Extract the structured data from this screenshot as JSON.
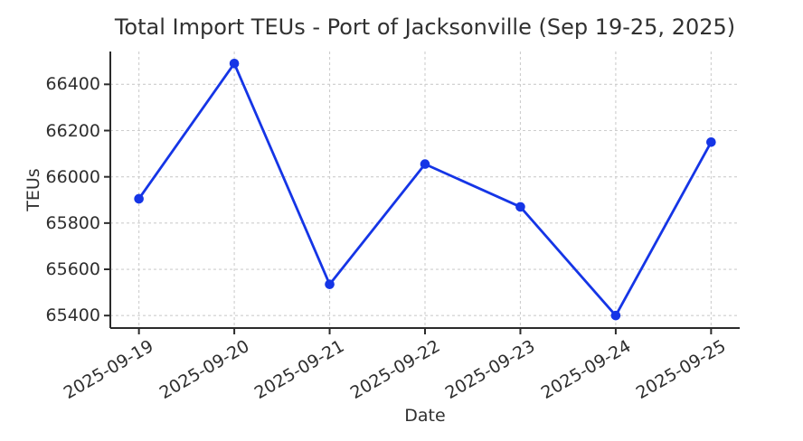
{
  "chart_data": {
    "type": "line",
    "title": "Total Import TEUs - Port of Jacksonville (Sep 19-25, 2025)",
    "xlabel": "Date",
    "ylabel": "TEUs",
    "categories": [
      "2025-09-19",
      "2025-09-20",
      "2025-09-21",
      "2025-09-22",
      "2025-09-23",
      "2025-09-24",
      "2025-09-25"
    ],
    "series": [
      {
        "name": "Total Import TEUs",
        "values": [
          65905,
          66490,
          65535,
          66055,
          65870,
          65400,
          66150
        ]
      }
    ],
    "y_ticks": [
      65400,
      65600,
      65800,
      66000,
      66200,
      66400
    ],
    "ylim": [
      65346,
      66542
    ],
    "grid": true,
    "grid_style": "dashed",
    "legend_position": "none",
    "line_color": "#1535e6",
    "marker": "circle",
    "grid_color": "#cdcdcd",
    "axis_color": "#2b2b2b",
    "text_color": "#2e2e2e"
  }
}
